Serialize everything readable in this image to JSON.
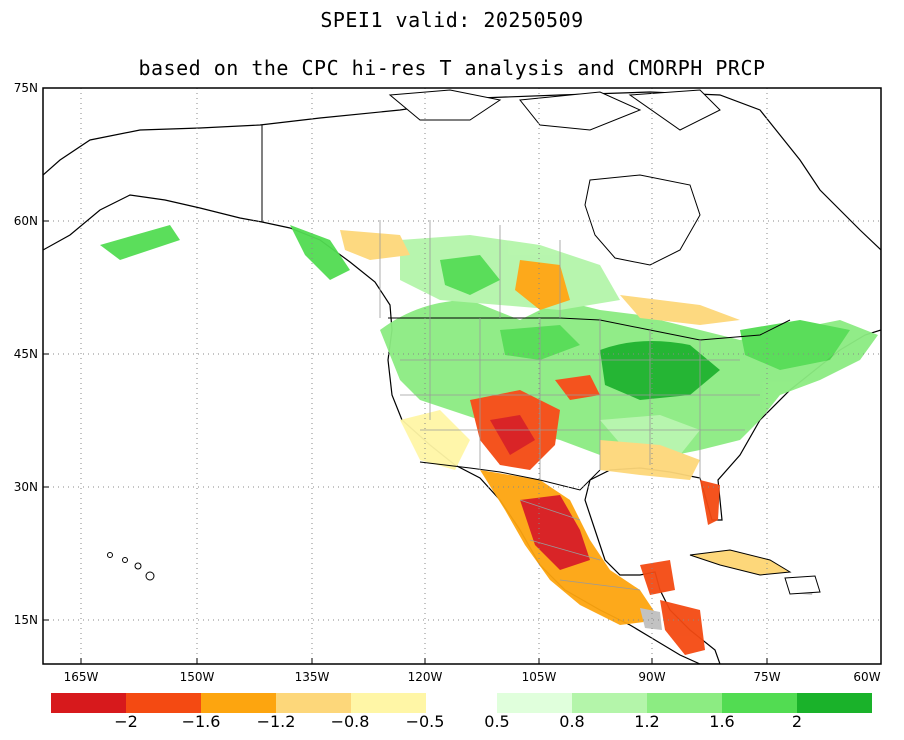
{
  "title": {
    "line1": "SPEI1  valid: 20250509",
    "line2": "based on the CPC hi-res T analysis and CMORPH PRCP"
  },
  "map": {
    "lat_labels": [
      "75N",
      "60N",
      "45N",
      "30N",
      "15N"
    ],
    "lon_labels": [
      "165W",
      "150W",
      "135W",
      "120W",
      "105W",
      "90W",
      "75W",
      "60W"
    ],
    "colors": {
      "land_outline": "#000000",
      "state_border": "#9a9a9a",
      "grid": "#888888",
      "no_data": "#bfbfbf"
    }
  },
  "colorbar": {
    "dry": [
      {
        "color": "#d7191c"
      },
      {
        "color": "#f44a12"
      },
      {
        "color": "#fda50f"
      },
      {
        "color": "#fdd77a"
      },
      {
        "color": "#fff6a6"
      }
    ],
    "wet": [
      {
        "color": "#e0ffdc"
      },
      {
        "color": "#b4f5aa"
      },
      {
        "color": "#8cec82"
      },
      {
        "color": "#52dc52"
      },
      {
        "color": "#1ab22a"
      }
    ],
    "labels": [
      "−2",
      "−1.6",
      "−1.2",
      "−0.8",
      "−0.5",
      "0.5",
      "0.8",
      "1.2",
      "1.6",
      "2"
    ]
  }
}
